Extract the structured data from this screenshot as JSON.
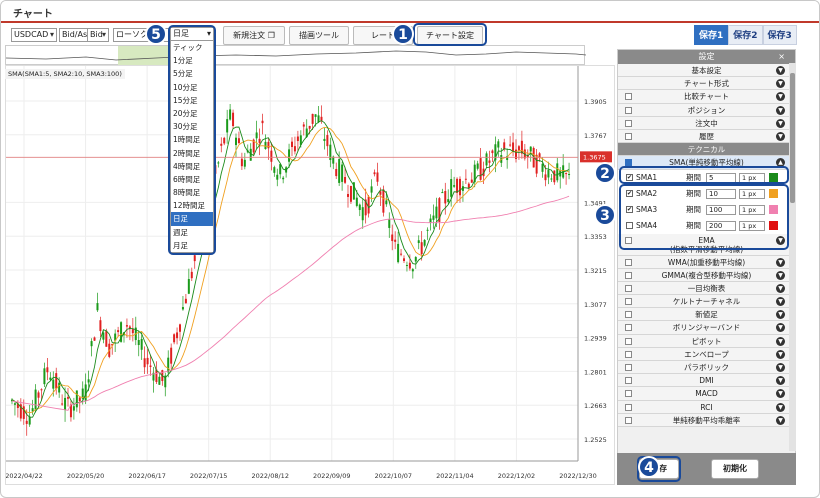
{
  "window": {
    "title": "チャート"
  },
  "toolbar": {
    "symbol": "USDCAD",
    "price_type": "Bid/Ask",
    "side": "Bid",
    "chart_type": "ローソク",
    "timeframe": "日足",
    "new_order": "新規注文",
    "draw_tools": "描画ツール",
    "rate": "レート",
    "chart_settings": "チャート設定"
  },
  "save_tabs": [
    "保存1",
    "保存2",
    "保存3"
  ],
  "chart": {
    "legend": "SMA(SMA1:5, SMA2:10, SMA3:100)",
    "current_price": "1.3675",
    "y_ticks": [
      "1.3905",
      "1.3767",
      "1.3491",
      "1.3353",
      "1.3215",
      "1.3077",
      "1.2939",
      "1.2801",
      "1.2663",
      "1.2525"
    ],
    "x_ticks": [
      "2022/04/22",
      "2022/05/20",
      "2022/06/17",
      "2022/07/15",
      "2022/08/12",
      "2022/09/09",
      "2022/10/07",
      "2022/11/04",
      "2022/12/02",
      "2022/12/30"
    ]
  },
  "timeframe_menu": [
    "ティック",
    "1分足",
    "5分足",
    "10分足",
    "15分足",
    "20分足",
    "30分足",
    "1時間足",
    "2時間足",
    "4時間足",
    "6時間足",
    "8時間足",
    "12時間足",
    "日足",
    "週足",
    "月足"
  ],
  "settings_panel": {
    "title": "設定",
    "close": "×",
    "rows_top": [
      {
        "label": "基本設定",
        "checkbox": false
      },
      {
        "label": "チャート形式",
        "checkbox": false
      },
      {
        "label": "比較チャート",
        "checkbox": true
      },
      {
        "label": "ポジション",
        "checkbox": true
      },
      {
        "label": "注文中",
        "checkbox": true
      },
      {
        "label": "履歴",
        "checkbox": true
      }
    ],
    "section_technical": "テクニカル",
    "sma_row": "SMA(単純移動平均線)",
    "period_label": "期間",
    "sma_lines": [
      {
        "name": "SMA1",
        "checked": true,
        "period": "5",
        "width": "1 px",
        "color": "#1a8a1a"
      },
      {
        "name": "SMA2",
        "checked": true,
        "period": "10",
        "width": "1 px",
        "color": "#f0a020"
      },
      {
        "name": "SMA3",
        "checked": true,
        "period": "100",
        "width": "1 px",
        "color": "#f080b0"
      },
      {
        "name": "SMA4",
        "checked": false,
        "period": "200",
        "width": "1 px",
        "color": "#e01010"
      }
    ],
    "rows_bottom": [
      {
        "label": "EMA\n(指数平滑移動平均線)",
        "tall": true
      },
      {
        "label": "WMA(加重移動平均線)"
      },
      {
        "label": "GMMA(複合型移動平均線)"
      },
      {
        "label": "一目均衡表"
      },
      {
        "label": "ケルトナーチャネル"
      },
      {
        "label": "新値足"
      },
      {
        "label": "ボリンジャーバンド"
      },
      {
        "label": "ピボット"
      },
      {
        "label": "エンベロープ"
      },
      {
        "label": "パラボリック"
      },
      {
        "label": "DMI"
      },
      {
        "label": "MACD"
      },
      {
        "label": "RCI"
      },
      {
        "label": "単純移動平均乖離率"
      }
    ],
    "save": "保存",
    "reset": "初期化"
  },
  "callouts": [
    "1",
    "2",
    "3",
    "4",
    "5"
  ],
  "colors": {
    "accent": "#1a4a9a",
    "bull": "#1a9a1a",
    "bear": "#e02020",
    "sma2": "#f0a020",
    "sma3": "#f080b0"
  }
}
